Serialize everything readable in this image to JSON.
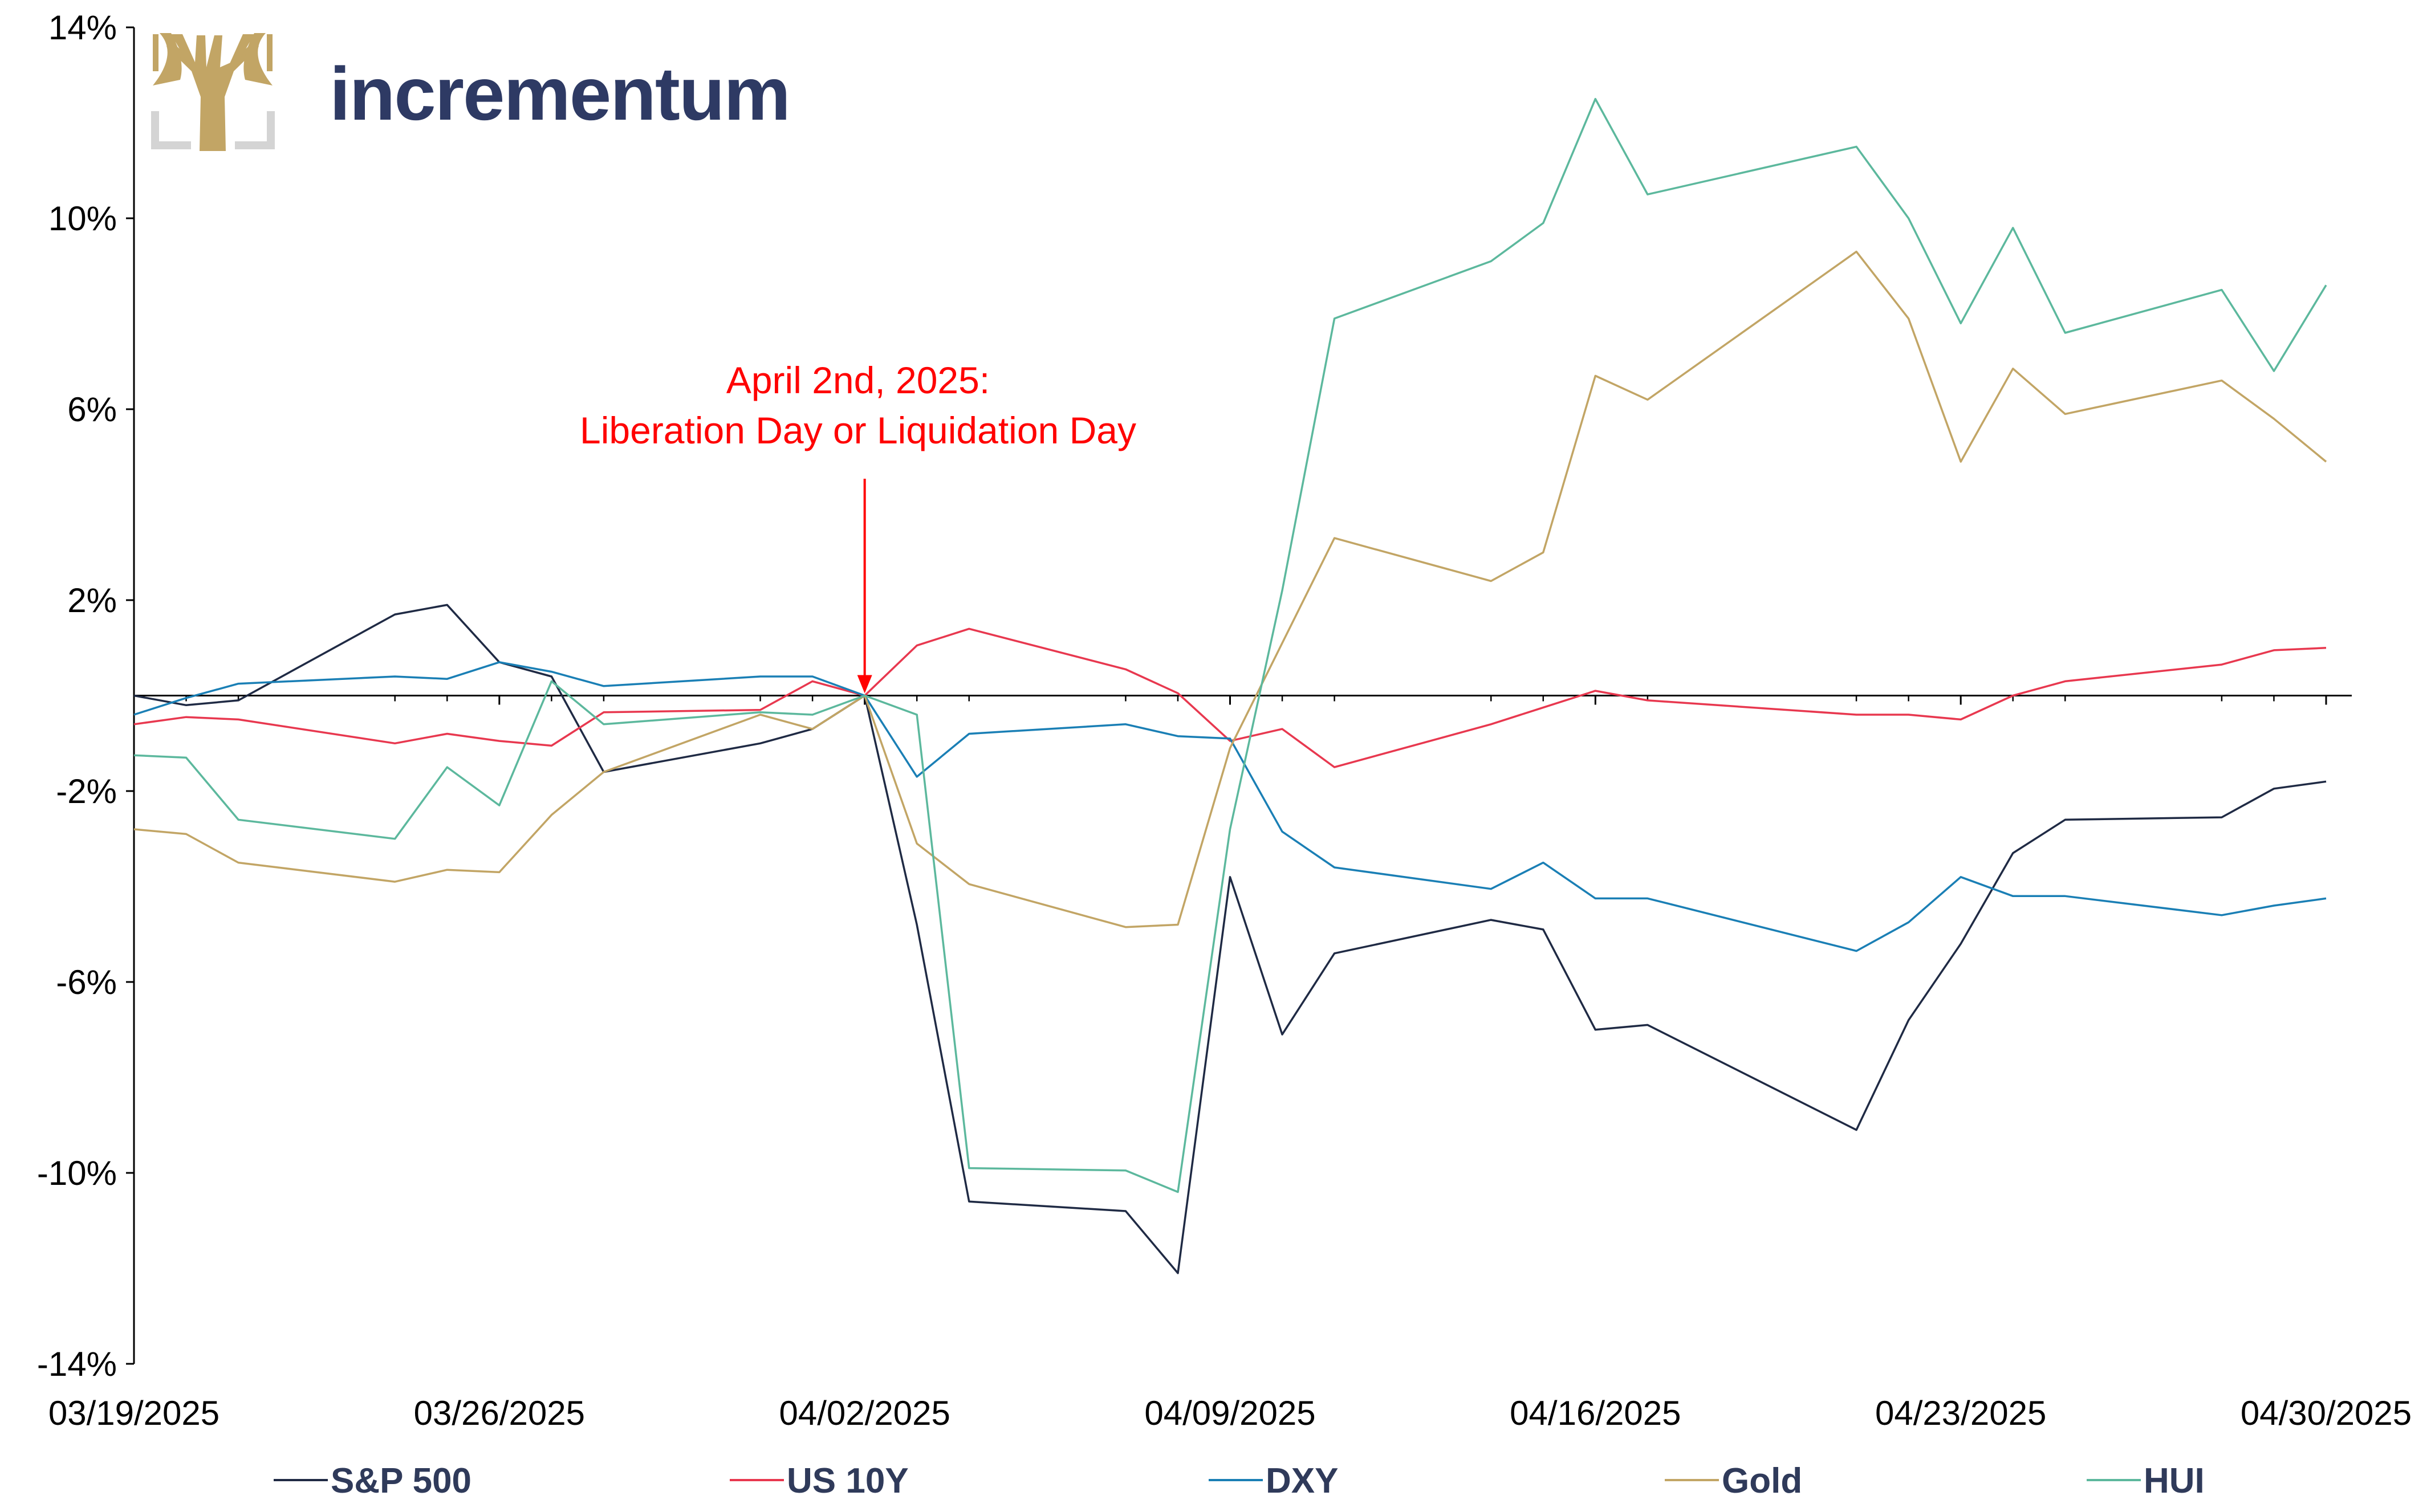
{
  "logo": {
    "wordmark": "incrementum",
    "icon": "tree-logo-icon",
    "colors": {
      "tree": "#c2a565",
      "bracket": "#d4d4d4",
      "wordmark": "#2e3a64"
    }
  },
  "annotation": {
    "line1": "April 2nd, 2025:",
    "line2": "Liberation Day or Liquidation Day",
    "color": "#ff0000",
    "arrow_date": "04/02/2025",
    "arrow_value": 0
  },
  "chart_data": {
    "type": "line",
    "title": "",
    "xlabel": "",
    "ylabel": "",
    "ylim": [
      -14,
      14
    ],
    "yticks": [
      -14,
      -10,
      -6,
      -2,
      2,
      6,
      10,
      14
    ],
    "ytick_labels": [
      "-14%",
      "-10%",
      "-6%",
      "-2%",
      "2%",
      "6%",
      "10%",
      "14%"
    ],
    "xlim": [
      "03/19/2025",
      "04/30/2025"
    ],
    "xtick_labels": [
      "03/19/2025",
      "03/26/2025",
      "04/02/2025",
      "04/09/2025",
      "04/16/2025",
      "04/23/2025",
      "04/30/2025"
    ],
    "zero_line": true,
    "grid": false,
    "legend_position": "bottom",
    "series": [
      {
        "name": "S&P 500",
        "color": "#1f2a44",
        "x": [
          "03/19/2025",
          "03/20/2025",
          "03/21/2025",
          "03/24/2025",
          "03/25/2025",
          "03/26/2025",
          "03/27/2025",
          "03/28/2025",
          "03/31/2025",
          "04/01/2025",
          "04/02/2025",
          "04/03/2025",
          "04/04/2025",
          "04/07/2025",
          "04/08/2025",
          "04/09/2025",
          "04/10/2025",
          "04/11/2025",
          "04/14/2025",
          "04/15/2025",
          "04/16/2025",
          "04/17/2025",
          "04/21/2025",
          "04/22/2025",
          "04/23/2025",
          "04/24/2025",
          "04/25/2025",
          "04/28/2025",
          "04/29/2025",
          "04/30/2025"
        ],
        "y": [
          0.0,
          -0.2,
          -0.1,
          1.7,
          1.9,
          0.7,
          0.4,
          -1.6,
          -1.0,
          -0.7,
          0.0,
          -4.8,
          -10.6,
          -10.8,
          -12.1,
          -3.8,
          -7.1,
          -5.4,
          -4.7,
          -4.9,
          -7.0,
          -6.9,
          -9.1,
          -6.8,
          -5.2,
          -3.3,
          -2.6,
          -2.55,
          -1.95,
          -1.8
        ]
      },
      {
        "name": "US 10Y",
        "color": "#e8384f",
        "x": [
          "03/19/2025",
          "03/20/2025",
          "03/21/2025",
          "03/24/2025",
          "03/25/2025",
          "03/26/2025",
          "03/27/2025",
          "03/28/2025",
          "03/31/2025",
          "04/01/2025",
          "04/02/2025",
          "04/03/2025",
          "04/04/2025",
          "04/07/2025",
          "04/08/2025",
          "04/09/2025",
          "04/10/2025",
          "04/11/2025",
          "04/14/2025",
          "04/15/2025",
          "04/16/2025",
          "04/17/2025",
          "04/21/2025",
          "04/22/2025",
          "04/23/2025",
          "04/24/2025",
          "04/25/2025",
          "04/28/2025",
          "04/29/2025",
          "04/30/2025"
        ],
        "y": [
          -0.6,
          -0.45,
          -0.5,
          -1.0,
          -0.8,
          -0.95,
          -1.05,
          -0.35,
          -0.3,
          0.3,
          0.0,
          1.05,
          1.4,
          0.55,
          0.05,
          -0.95,
          -0.7,
          -1.5,
          -0.6,
          -0.25,
          0.1,
          -0.1,
          -0.4,
          -0.4,
          -0.5,
          0.0,
          0.3,
          0.65,
          0.95,
          1.0
        ]
      },
      {
        "name": "DXY",
        "color": "#1a7fb5",
        "x": [
          "03/19/2025",
          "03/20/2025",
          "03/21/2025",
          "03/24/2025",
          "03/25/2025",
          "03/26/2025",
          "03/27/2025",
          "03/28/2025",
          "03/31/2025",
          "04/01/2025",
          "04/02/2025",
          "04/03/2025",
          "04/04/2025",
          "04/07/2025",
          "04/08/2025",
          "04/09/2025",
          "04/10/2025",
          "04/11/2025",
          "04/14/2025",
          "04/15/2025",
          "04/16/2025",
          "04/17/2025",
          "04/21/2025",
          "04/22/2025",
          "04/23/2025",
          "04/24/2025",
          "04/25/2025",
          "04/28/2025",
          "04/29/2025",
          "04/30/2025"
        ],
        "y": [
          -0.4,
          -0.05,
          0.25,
          0.4,
          0.35,
          0.7,
          0.5,
          0.2,
          0.4,
          0.4,
          0.0,
          -1.7,
          -0.8,
          -0.6,
          -0.85,
          -0.9,
          -2.85,
          -3.6,
          -4.05,
          -3.5,
          -4.25,
          -4.25,
          -5.35,
          -4.75,
          -3.8,
          -4.2,
          -4.2,
          -4.6,
          -4.4,
          -4.25
        ]
      },
      {
        "name": "Gold",
        "color": "#c2a565",
        "x": [
          "03/19/2025",
          "03/20/2025",
          "03/21/2025",
          "03/24/2025",
          "03/25/2025",
          "03/26/2025",
          "03/27/2025",
          "03/28/2025",
          "03/31/2025",
          "04/01/2025",
          "04/02/2025",
          "04/03/2025",
          "04/04/2025",
          "04/07/2025",
          "04/08/2025",
          "04/09/2025",
          "04/10/2025",
          "04/11/2025",
          "04/14/2025",
          "04/15/2025",
          "04/16/2025",
          "04/17/2025",
          "04/21/2025",
          "04/22/2025",
          "04/23/2025",
          "04/24/2025",
          "04/25/2025",
          "04/28/2025",
          "04/29/2025",
          "04/30/2025"
        ],
        "y": [
          -2.8,
          -2.9,
          -3.5,
          -3.9,
          -3.65,
          -3.7,
          -2.5,
          -1.6,
          -0.4,
          -0.7,
          0.0,
          -3.1,
          -3.95,
          -4.85,
          -4.8,
          -1.1,
          1.1,
          3.3,
          2.4,
          3.0,
          6.7,
          6.2,
          9.3,
          7.9,
          4.9,
          6.85,
          5.9,
          6.6,
          5.8,
          4.9
        ]
      },
      {
        "name": "HUI",
        "color": "#5cb89d",
        "x": [
          "03/19/2025",
          "03/20/2025",
          "03/21/2025",
          "03/24/2025",
          "03/25/2025",
          "03/26/2025",
          "03/27/2025",
          "03/28/2025",
          "03/31/2025",
          "04/01/2025",
          "04/02/2025",
          "04/03/2025",
          "04/04/2025",
          "04/07/2025",
          "04/08/2025",
          "04/09/2025",
          "04/10/2025",
          "04/11/2025",
          "04/14/2025",
          "04/15/2025",
          "04/16/2025",
          "04/17/2025",
          "04/21/2025",
          "04/22/2025",
          "04/23/2025",
          "04/24/2025",
          "04/25/2025",
          "04/28/2025",
          "04/29/2025",
          "04/30/2025"
        ],
        "y": [
          -1.25,
          -1.3,
          -2.6,
          -3.0,
          -1.5,
          -2.3,
          0.3,
          -0.6,
          -0.35,
          -0.4,
          0.0,
          -0.4,
          -9.9,
          -9.95,
          -10.4,
          -2.8,
          2.2,
          7.9,
          9.1,
          9.9,
          12.5,
          10.5,
          11.5,
          10.0,
          7.8,
          9.8,
          7.6,
          8.5,
          6.8,
          8.6
        ]
      }
    ]
  }
}
